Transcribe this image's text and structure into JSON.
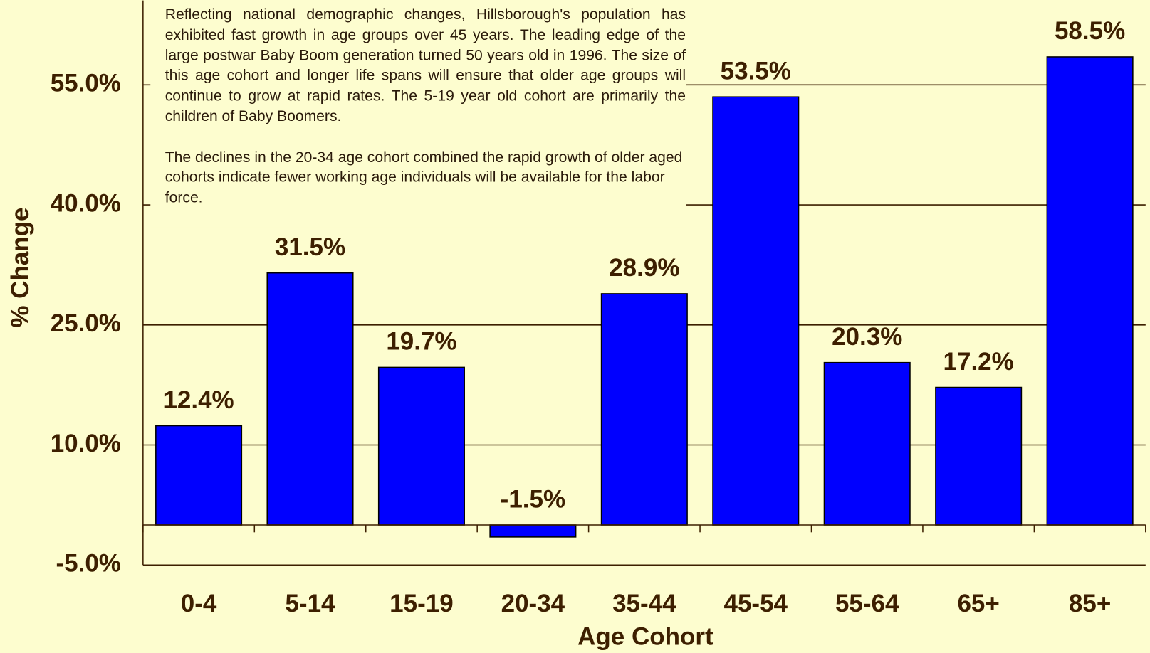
{
  "chart_data": {
    "type": "bar",
    "annotation": [
      "Reflecting national demographic changes, Hillsborough's population has exhibited fast growth in age groups over 45 years.  The leading edge of the large postwar Baby Boom generation turned 50 years old in 1996.  The size of this age cohort and longer life spans will ensure that older age groups will continue to grow at rapid rates.  The 5-19 year old cohort are primarily the children of  Baby Boomers.",
      "The declines in the 20-34  age cohort combined the rapid growth of older aged cohorts indicate fewer working age individuals will be available for the labor force."
    ],
    "xlabel": "Age Cohort",
    "ylabel": "% Change",
    "categories": [
      "0-4",
      "5-14",
      "15-19",
      "20-34",
      "35-44",
      "45-54",
      "55-64",
      "65+",
      "85+"
    ],
    "values": [
      12.4,
      31.5,
      19.7,
      -1.5,
      28.9,
      53.5,
      20.3,
      17.2,
      58.5
    ],
    "value_labels": [
      "12.4%",
      "31.5%",
      "19.7%",
      "-1.5%",
      "28.9%",
      "53.5%",
      "20.3%",
      "17.2%",
      "58.5%"
    ],
    "color": "#0000ff",
    "ylim": [
      -5,
      65
    ],
    "yticks": [
      {
        "value": -5,
        "label": "-5.0%"
      },
      {
        "value": 10,
        "label": "10.0%"
      },
      {
        "value": 25,
        "label": "25.0%"
      },
      {
        "value": 40,
        "label": "40.0%"
      },
      {
        "value": 55,
        "label": "55.0%"
      }
    ],
    "grid": true
  }
}
